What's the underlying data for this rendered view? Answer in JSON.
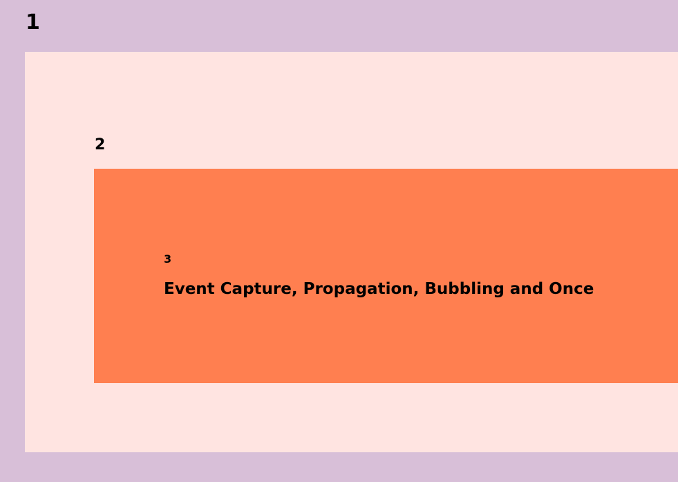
{
  "outer": {
    "label": "1"
  },
  "middle": {
    "label": "2"
  },
  "inner": {
    "label": "3",
    "title": "Event Capture, Propagation, Bubbling and Once"
  },
  "colors": {
    "outer_background": "#d8bfd8",
    "middle_background": "#ffe4e1",
    "inner_background": "#ff7f50"
  }
}
